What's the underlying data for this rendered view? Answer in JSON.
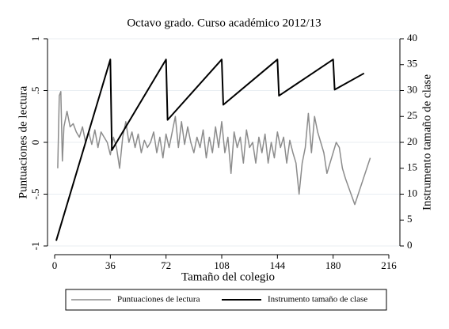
{
  "chart_data": {
    "type": "line",
    "title": "Octavo grado. Curso académico 2012/13",
    "xlabel": "Tamaño del colegio",
    "ylabel": "Puntuaciones de lectura",
    "y2label": "Instrumento tamaño de clase",
    "xlim": [
      0,
      216
    ],
    "xticks": [
      0,
      36,
      72,
      108,
      144,
      180,
      216
    ],
    "ylim": [
      -1,
      1
    ],
    "yticks": [
      -1,
      {
        "value": -0.5,
        "label": "-.5"
      },
      0,
      {
        "value": 0.5,
        "label": ".5"
      },
      1
    ],
    "y2lim": [
      0,
      40
    ],
    "y2ticks": [
      0,
      5,
      10,
      15,
      20,
      25,
      30,
      35,
      40
    ],
    "grid": true,
    "legend": "bottom",
    "series": [
      {
        "name": "Puntuaciones de lectura",
        "color": "#8c8c8c",
        "x": [
          2,
          3,
          4,
          5,
          6,
          8,
          10,
          12,
          14,
          16,
          18,
          20,
          22,
          24,
          26,
          28,
          30,
          32,
          34,
          36,
          38,
          40,
          42,
          44,
          46,
          48,
          50,
          52,
          54,
          56,
          58,
          60,
          62,
          64,
          66,
          68,
          70,
          72,
          74,
          76,
          78,
          80,
          82,
          84,
          86,
          88,
          90,
          92,
          94,
          96,
          98,
          100,
          102,
          104,
          106,
          108,
          110,
          112,
          114,
          116,
          118,
          120,
          122,
          124,
          126,
          128,
          130,
          132,
          134,
          136,
          138,
          140,
          142,
          144,
          146,
          148,
          150,
          152,
          154,
          156,
          158,
          160,
          162,
          164,
          166,
          168,
          170,
          172,
          174,
          176,
          178,
          180,
          182,
          184,
          186,
          188,
          194,
          204
        ],
        "values": [
          -0.25,
          0.45,
          0.49,
          -0.18,
          0.15,
          0.3,
          0.15,
          0.18,
          0.1,
          0.05,
          0.15,
          0.0,
          0.1,
          -0.02,
          0.12,
          -0.05,
          0.1,
          0.05,
          0.0,
          -0.12,
          0.05,
          -0.05,
          -0.25,
          0.05,
          0.2,
          0.0,
          0.1,
          -0.05,
          0.08,
          -0.1,
          0.02,
          -0.05,
          0.0,
          0.1,
          -0.1,
          0.05,
          -0.15,
          0.08,
          -0.05,
          0.1,
          0.25,
          -0.05,
          0.2,
          -0.02,
          0.15,
          0.0,
          -0.1,
          0.05,
          -0.05,
          0.12,
          -0.15,
          0.05,
          -0.1,
          0.15,
          -0.05,
          0.2,
          -0.1,
          0.05,
          -0.3,
          0.1,
          -0.05,
          0.05,
          -0.2,
          0.12,
          -0.05,
          0.0,
          -0.2,
          0.05,
          -0.1,
          0.08,
          -0.2,
          0.0,
          -0.15,
          0.1,
          -0.05,
          0.05,
          -0.2,
          0.02,
          -0.1,
          -0.2,
          -0.5,
          -0.2,
          -0.05,
          0.28,
          -0.1,
          0.25,
          0.1,
          0.0,
          -0.1,
          -0.3,
          -0.2,
          -0.1,
          0.0,
          -0.05,
          -0.25,
          -0.35,
          -0.6,
          -0.15
        ]
      },
      {
        "name": "Instrumento tamaño de clase",
        "color": "#000000",
        "axis": "y2",
        "x": [
          1,
          36,
          37,
          72,
          73,
          108,
          109,
          144,
          145,
          180,
          181,
          200
        ],
        "values": [
          1,
          36,
          18.5,
          36,
          24.33,
          36,
          27.25,
          36,
          29,
          36,
          30.17,
          33.33
        ]
      }
    ]
  }
}
